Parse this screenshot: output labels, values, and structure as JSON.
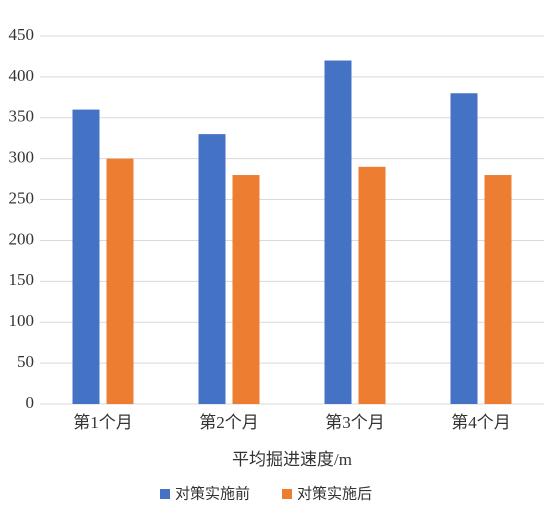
{
  "chart_data": {
    "type": "bar",
    "x_label": "平均掘进速度/m",
    "categories": [
      "第1个月",
      "第2个月",
      "第3个月",
      "第4个月"
    ],
    "series": [
      {
        "name": "对策实施前",
        "color": "#4472c4",
        "values": [
          360,
          330,
          420,
          380
        ]
      },
      {
        "name": "对策实施后",
        "color": "#ed7d31",
        "values": [
          300,
          280,
          290,
          280
        ]
      }
    ],
    "ylim": [
      0,
      450
    ],
    "yticks": [
      0,
      50,
      100,
      150,
      200,
      250,
      300,
      350,
      400,
      450
    ],
    "grid": true,
    "legend": "bottom"
  }
}
